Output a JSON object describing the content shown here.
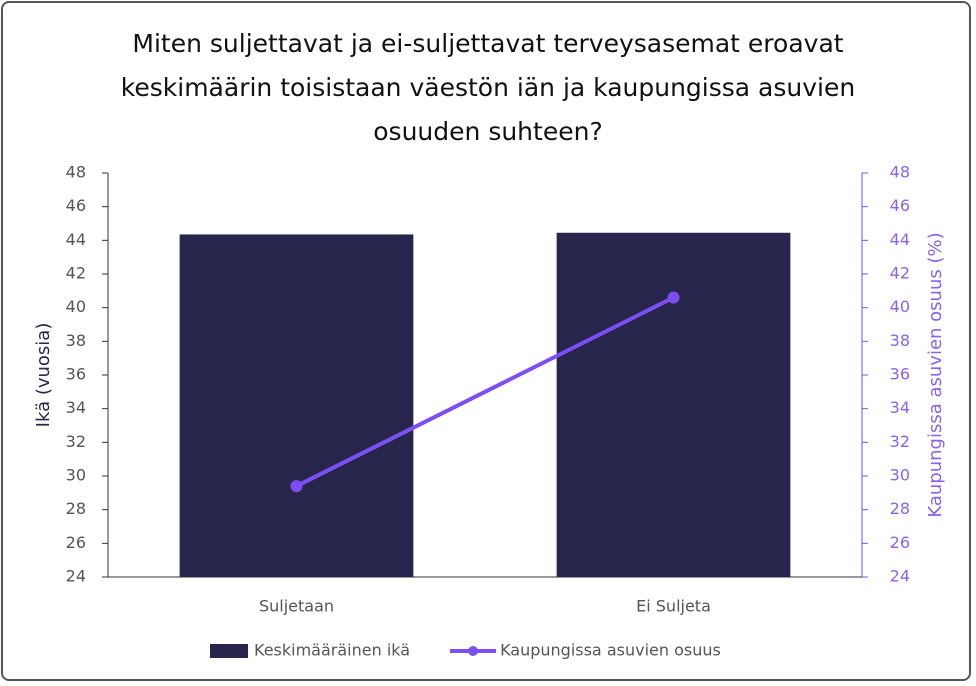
{
  "chart_data": {
    "type": "bar",
    "title": "Miten suljettavat ja ei-suljettavat terveysasemat eroavat keskimäärin toisistaan väestön iän ja kaupungissa asuvien osuuden suhteen?",
    "categories": [
      "Suljetaan",
      "Ei Suljeta"
    ],
    "y_label": "Ikä (vuosia)",
    "y2_label": "Kaupungissa asuvien osuus (%)",
    "series": [
      {
        "name": "Keskimääräinen ikä",
        "type": "bar",
        "color": "#29264d",
        "values": [
          44.35,
          44.45
        ]
      },
      {
        "name": "Kaupungissa asuvien osuus",
        "type": "line",
        "axis": "y2",
        "color": "#7b4ff0",
        "values": [
          29.4,
          40.6
        ]
      }
    ],
    "ylim": [
      24,
      48
    ],
    "yticks": [
      24,
      26,
      28,
      30,
      32,
      34,
      36,
      38,
      40,
      42,
      44,
      46,
      48
    ],
    "y2lim": [
      24,
      48
    ],
    "y2ticks": [
      24,
      26,
      28,
      30,
      32,
      34,
      36,
      38,
      40,
      42,
      44,
      46,
      48
    ],
    "legend": "bottom"
  }
}
